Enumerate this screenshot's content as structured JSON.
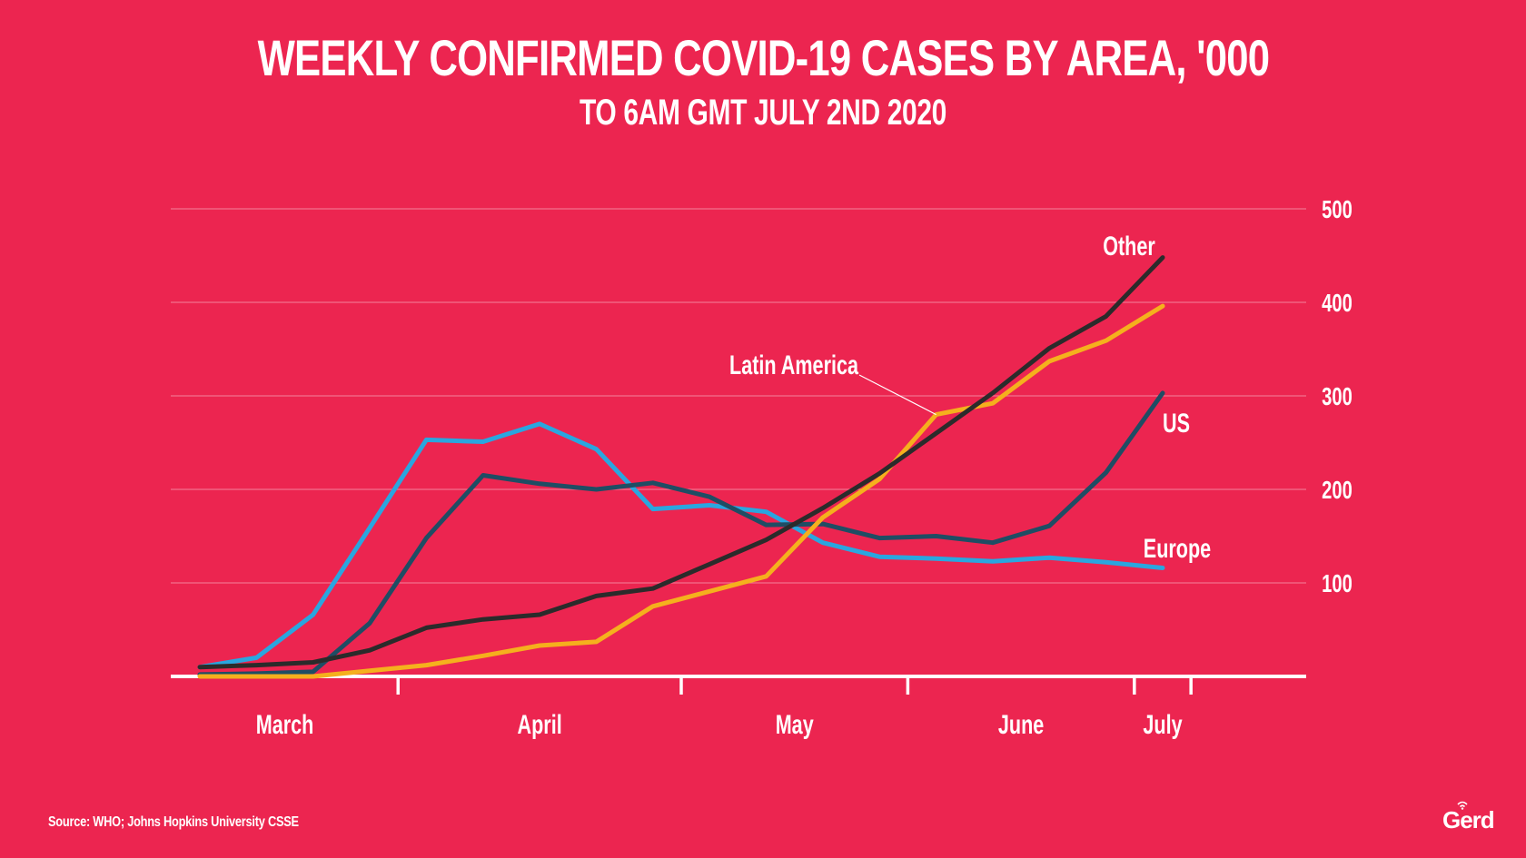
{
  "header": {
    "title": "WEEKLY CONFIRMED COVID-19 CASES BY AREA, '000",
    "subtitle": "TO 6AM GMT JULY 2ND 2020"
  },
  "footer": {
    "source": "Source: WHO; Johns Hopkins University CSSE",
    "logo": "Gerd",
    "logo_icon": "wifi-signal-icon"
  },
  "colors": {
    "background": "#ec2550",
    "Europe": "#2aa6df",
    "US": "#1f4d64",
    "Other": "#2b2b2b",
    "Latin America": "#f5b01d",
    "text": "#ffffff"
  },
  "chart_data": {
    "type": "line",
    "title": "WEEKLY CONFIRMED COVID-19 CASES BY AREA, '000",
    "subtitle": "TO 6AM GMT JULY 2ND 2020",
    "xlabel": "",
    "ylabel": "",
    "ylim": [
      0,
      500
    ],
    "yticks": [
      100,
      200,
      300,
      400,
      500
    ],
    "y_axis_position": "right",
    "grid": true,
    "x_weeks": 18,
    "x_tick_weeks": [
      3.5,
      8.5,
      12.5,
      16.5,
      17.5
    ],
    "x_month_labels": [
      {
        "label": "March",
        "week": 1.5
      },
      {
        "label": "April",
        "week": 6
      },
      {
        "label": "May",
        "week": 10.5
      },
      {
        "label": "June",
        "week": 14.5
      },
      {
        "label": "July",
        "week": 17
      }
    ],
    "legend": "inline-labels",
    "series": [
      {
        "name": "Europe",
        "label": "Europe",
        "values": [
          10,
          20,
          66,
          159,
          253,
          251,
          270,
          243,
          179,
          183,
          176,
          143,
          128,
          126,
          123,
          127,
          122,
          116
        ]
      },
      {
        "name": "US",
        "label": "US",
        "values": [
          2,
          3,
          5,
          57,
          148,
          215,
          206,
          200,
          207,
          192,
          162,
          163,
          148,
          150,
          143,
          161,
          218,
          303
        ]
      },
      {
        "name": "Other",
        "label": "Other",
        "values": [
          10,
          12,
          15,
          28,
          52,
          61,
          66,
          86,
          94,
          120,
          146,
          180,
          217,
          260,
          303,
          351,
          385,
          448
        ]
      },
      {
        "name": "Latin America",
        "label": "Latin America",
        "values": [
          0,
          0,
          0,
          6,
          12,
          22,
          33,
          37,
          75,
          91,
          107,
          170,
          211,
          280,
          292,
          337,
          359,
          396
        ]
      }
    ]
  }
}
